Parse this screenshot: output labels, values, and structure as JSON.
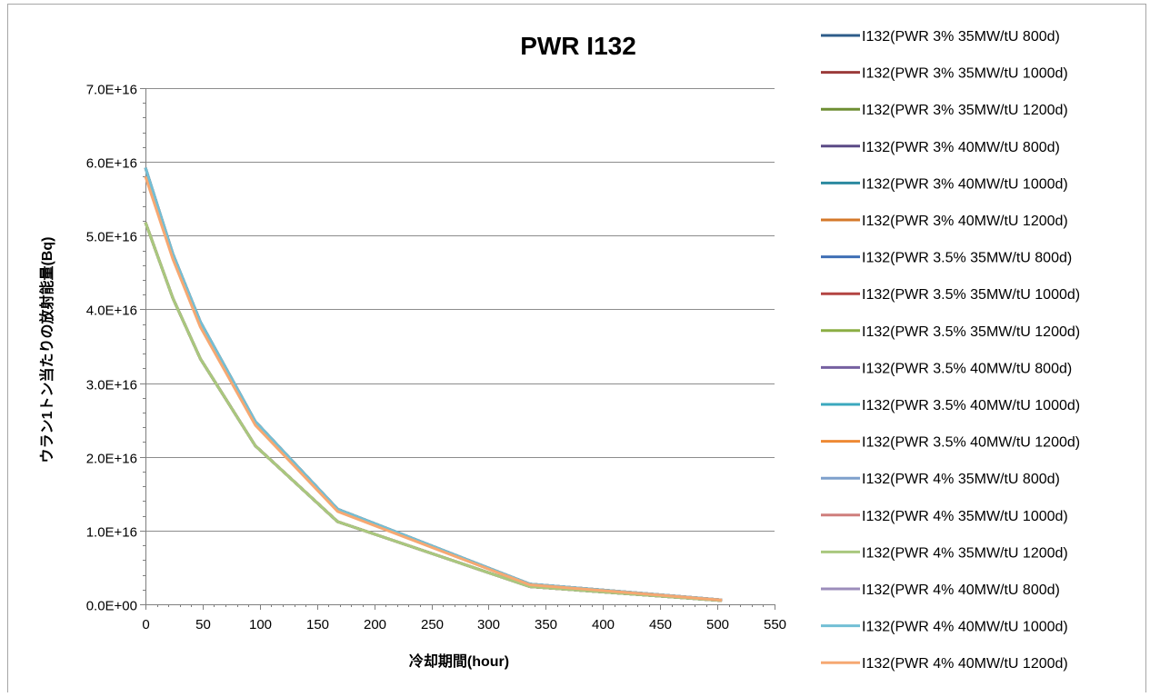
{
  "chart_data": {
    "type": "line",
    "title": "PWR I132",
    "xlabel": "冷却期間(hour)",
    "ylabel": "ウラン1トン当たりの放射能量(Bq)",
    "xlim": [
      0,
      550
    ],
    "ylim": [
      0,
      7e+16
    ],
    "xticks": [
      0,
      50,
      100,
      150,
      200,
      250,
      300,
      350,
      400,
      450,
      500,
      550
    ],
    "xtick_labels": [
      "0",
      "50",
      "100",
      "150",
      "200",
      "250",
      "300",
      "350",
      "400",
      "450",
      "500",
      "550"
    ],
    "yticks": [
      0,
      1e+16,
      2e+16,
      3e+16,
      4e+16,
      5e+16,
      6e+16,
      7e+16
    ],
    "ytick_labels": [
      "0.0E+00",
      "1.0E+16",
      "2.0E+16",
      "3.0E+16",
      "4.0E+16",
      "5.0E+16",
      "6.0E+16",
      "7.0E+16"
    ],
    "grid": "horizontal",
    "legend_position": "right",
    "x": [
      0,
      24,
      48,
      96,
      168,
      336,
      504
    ],
    "series": [
      {
        "name": "I132(PWR 3% 35MW/tU 800d)",
        "color": "#2E5C8A",
        "values": [
          5.18e+16,
          4.15e+16,
          3.33e+16,
          2.15e+16,
          1.12e+16,
          2400000000000000.0,
          510000000000000.0
        ]
      },
      {
        "name": "I132(PWR 3% 35MW/tU 1000d)",
        "color": "#9B3B3A",
        "values": [
          5.18e+16,
          4.15e+16,
          3.33e+16,
          2.15e+16,
          1.12e+16,
          2400000000000000.0,
          510000000000000.0
        ]
      },
      {
        "name": "I132(PWR 3% 35MW/tU 1200d)",
        "color": "#6E8E33",
        "values": [
          5.18e+16,
          4.15e+16,
          3.33e+16,
          2.15e+16,
          1.12e+16,
          2400000000000000.0,
          510000000000000.0
        ]
      },
      {
        "name": "I132(PWR 3% 40MW/tU 800d)",
        "color": "#5B4A86",
        "values": [
          5.92e+16,
          4.75e+16,
          3.83e+16,
          2.48e+16,
          1.29e+16,
          2750000000000000.0,
          590000000000000.0
        ]
      },
      {
        "name": "I132(PWR 3% 40MW/tU 1000d)",
        "color": "#2B8AA0",
        "values": [
          5.92e+16,
          4.75e+16,
          3.83e+16,
          2.48e+16,
          1.29e+16,
          2750000000000000.0,
          590000000000000.0
        ]
      },
      {
        "name": "I132(PWR 3% 40MW/tU 1200d)",
        "color": "#D4782A",
        "values": [
          5.92e+16,
          4.75e+16,
          3.83e+16,
          2.48e+16,
          1.29e+16,
          2750000000000000.0,
          590000000000000.0
        ]
      },
      {
        "name": "I132(PWR 3.5% 35MW/tU 800d)",
        "color": "#3F6FB5",
        "values": [
          5.18e+16,
          4.15e+16,
          3.33e+16,
          2.15e+16,
          1.12e+16,
          2400000000000000.0,
          510000000000000.0
        ]
      },
      {
        "name": "I132(PWR 3.5% 35MW/tU 1000d)",
        "color": "#B34442",
        "values": [
          5.18e+16,
          4.15e+16,
          3.33e+16,
          2.15e+16,
          1.12e+16,
          2400000000000000.0,
          510000000000000.0
        ]
      },
      {
        "name": "I132(PWR 3.5% 35MW/tU 1200d)",
        "color": "#8BAE44",
        "values": [
          5.18e+16,
          4.15e+16,
          3.33e+16,
          2.15e+16,
          1.12e+16,
          2400000000000000.0,
          510000000000000.0
        ]
      },
      {
        "name": "I132(PWR 3.5% 40MW/tU 800d)",
        "color": "#7560A0",
        "values": [
          5.92e+16,
          4.75e+16,
          3.83e+16,
          2.48e+16,
          1.29e+16,
          2750000000000000.0,
          590000000000000.0
        ]
      },
      {
        "name": "I132(PWR 3.5% 40MW/tU 1000d)",
        "color": "#3BA8BE",
        "values": [
          5.92e+16,
          4.75e+16,
          3.83e+16,
          2.48e+16,
          1.29e+16,
          2750000000000000.0,
          590000000000000.0
        ]
      },
      {
        "name": "I132(PWR 3.5% 40MW/tU 1200d)",
        "color": "#EE8A34",
        "values": [
          5.92e+16,
          4.75e+16,
          3.83e+16,
          2.48e+16,
          1.29e+16,
          2750000000000000.0,
          590000000000000.0
        ]
      },
      {
        "name": "I132(PWR 4% 35MW/tU 800d)",
        "color": "#7EA0CC",
        "values": [
          5.18e+16,
          4.15e+16,
          3.33e+16,
          2.15e+16,
          1.12e+16,
          2400000000000000.0,
          510000000000000.0
        ]
      },
      {
        "name": "I132(PWR 4% 35MW/tU 1000d)",
        "color": "#CF7E7C",
        "values": [
          5.18e+16,
          4.15e+16,
          3.33e+16,
          2.15e+16,
          1.12e+16,
          2400000000000000.0,
          510000000000000.0
        ]
      },
      {
        "name": "I132(PWR 4% 35MW/tU 1200d)",
        "color": "#A9C87E",
        "values": [
          5.18e+16,
          4.15e+16,
          3.33e+16,
          2.15e+16,
          1.12e+16,
          2400000000000000.0,
          510000000000000.0
        ]
      },
      {
        "name": "I132(PWR 4% 40MW/tU 800d)",
        "color": "#9C8DBB",
        "values": [
          5.92e+16,
          4.75e+16,
          3.83e+16,
          2.48e+16,
          1.29e+16,
          2750000000000000.0,
          590000000000000.0
        ]
      },
      {
        "name": "I132(PWR 4% 40MW/tU 1000d)",
        "color": "#72BFD5",
        "values": [
          5.92e+16,
          4.75e+16,
          3.83e+16,
          2.48e+16,
          1.29e+16,
          2750000000000000.0,
          590000000000000.0
        ]
      },
      {
        "name": "I132(PWR 4% 40MW/tU 1200d)",
        "color": "#F6A872",
        "values": [
          5.8e+16,
          4.68e+16,
          3.76e+16,
          2.43e+16,
          1.26e+16,
          2650000000000000.0,
          570000000000000.0
        ]
      }
    ]
  }
}
